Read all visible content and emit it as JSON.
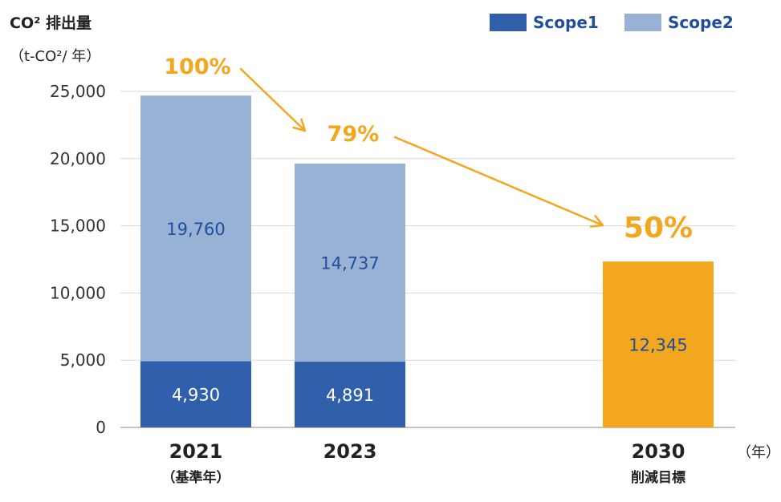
{
  "chart_data": {
    "type": "bar",
    "stacked": true,
    "ylabel_line1": "CO² 排出量",
    "ylabel_line2": "（t-CO²/ 年）",
    "xunit": "（年）",
    "categories": [
      "2021",
      "2023",
      "2030"
    ],
    "category_sublabels": [
      "（基準年）",
      "",
      "削減目標"
    ],
    "ylim": [
      0,
      25000
    ],
    "yticks": [
      "0",
      "5,000",
      "10,000",
      "15,000",
      "20,000",
      "25,000"
    ],
    "grid": true,
    "legend_position": "top-right",
    "series": [
      {
        "name": "Scope1",
        "color": "#3060ab",
        "values": [
          4930,
          4891,
          null
        ],
        "labels": [
          "4,930",
          "4,891",
          ""
        ]
      },
      {
        "name": "Scope2",
        "color": "#98b2d5",
        "values": [
          19760,
          14737,
          null
        ],
        "labels": [
          "19,760",
          "14,737",
          ""
        ]
      }
    ],
    "target": {
      "category": "2030",
      "value": 12345,
      "label": "12,345",
      "color": "#f2a71f"
    },
    "percentages": [
      "100%",
      "79%",
      "50%"
    ],
    "annotation_color": "#f2a71f"
  }
}
